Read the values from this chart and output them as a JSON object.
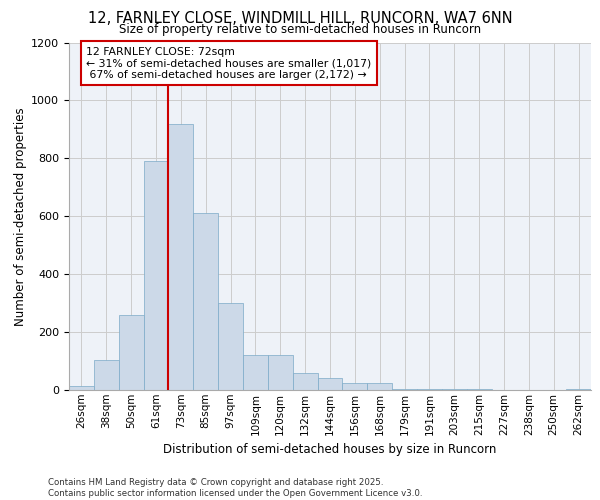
{
  "title_line1": "12, FARNLEY CLOSE, WINDMILL HILL, RUNCORN, WA7 6NN",
  "title_line2": "Size of property relative to semi-detached houses in Runcorn",
  "xlabel": "Distribution of semi-detached houses by size in Runcorn",
  "ylabel": "Number of semi-detached properties",
  "categories": [
    "26sqm",
    "38sqm",
    "50sqm",
    "61sqm",
    "73sqm",
    "85sqm",
    "97sqm",
    "109sqm",
    "120sqm",
    "132sqm",
    "144sqm",
    "156sqm",
    "168sqm",
    "179sqm",
    "191sqm",
    "203sqm",
    "215sqm",
    "227sqm",
    "238sqm",
    "250sqm",
    "262sqm"
  ],
  "values": [
    15,
    105,
    260,
    790,
    920,
    610,
    300,
    120,
    120,
    60,
    40,
    25,
    25,
    5,
    5,
    3,
    2,
    1,
    1,
    0,
    5
  ],
  "bar_color": "#ccd9e8",
  "bar_edge_color": "#7baac8",
  "vline_color": "#cc0000",
  "annotation_box_color": "#cc0000",
  "property_label": "12 FARNLEY CLOSE: 72sqm",
  "pct_smaller": 31,
  "pct_larger": 67,
  "n_smaller": 1017,
  "n_larger": 2172,
  "ylim": [
    0,
    1200
  ],
  "yticks": [
    0,
    200,
    400,
    600,
    800,
    1000,
    1200
  ],
  "grid_color": "#cccccc",
  "bg_color": "#eef2f8",
  "footer_line1": "Contains HM Land Registry data © Crown copyright and database right 2025.",
  "footer_line2": "Contains public sector information licensed under the Open Government Licence v3.0."
}
